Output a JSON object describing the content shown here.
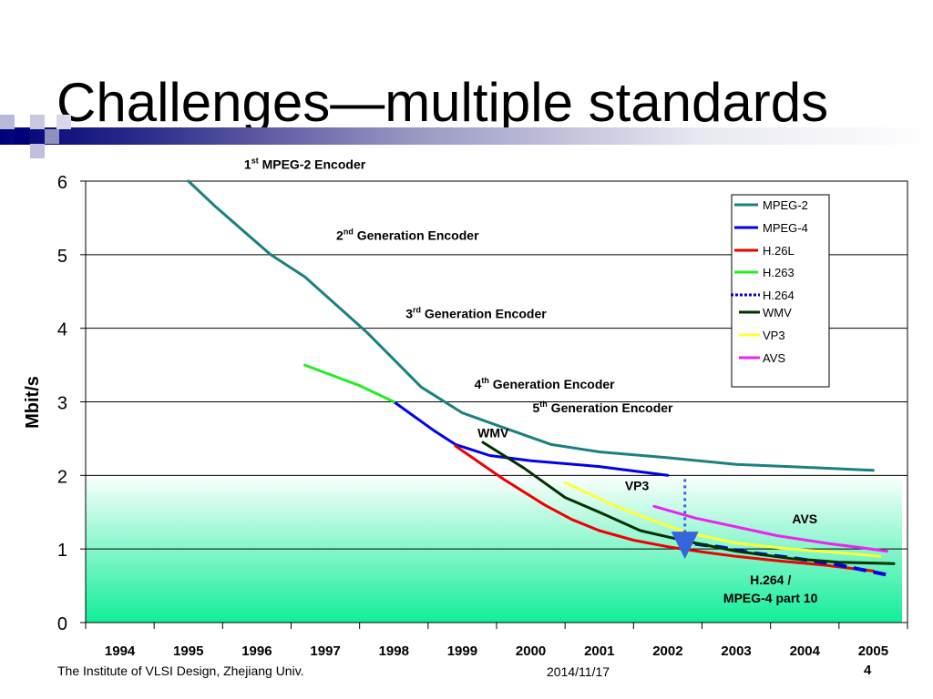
{
  "slide": {
    "title": "Challenges—multiple standards",
    "footer_left": "The Institute of VLSI Design, Zhejiang Univ.",
    "footer_date": "2014/11/17",
    "page_number": "4"
  },
  "chart_data": {
    "type": "line",
    "title": "",
    "xlabel": "",
    "ylabel": "Mbit/s",
    "xlim": [
      1993.5,
      2005.5
    ],
    "ylim": [
      0,
      6
    ],
    "x_ticks": [
      "1994",
      "1995",
      "1996",
      "1997",
      "1998",
      "1999",
      "2000",
      "2001",
      "2002",
      "2003",
      "2004",
      "2005"
    ],
    "y_ticks": [
      "0",
      "1",
      "2",
      "3",
      "4",
      "5",
      "6"
    ],
    "grid": "horizontal",
    "legend_position": "top-right",
    "series": [
      {
        "name": "MPEG-2",
        "color": "#1a8080",
        "style": "solid",
        "points": [
          [
            1995,
            6.0
          ],
          [
            1995.4,
            5.65
          ],
          [
            1996.2,
            5.0
          ],
          [
            1996.7,
            4.7
          ],
          [
            1997.6,
            3.95
          ],
          [
            1998.4,
            3.2
          ],
          [
            1999,
            2.85
          ],
          [
            1999.6,
            2.65
          ],
          [
            2000.3,
            2.42
          ],
          [
            2001,
            2.32
          ],
          [
            2002,
            2.24
          ],
          [
            2003,
            2.15
          ],
          [
            2004,
            2.11
          ],
          [
            2005,
            2.07
          ]
        ]
      },
      {
        "name": "MPEG-4",
        "color": "#0000ee",
        "style": "solid",
        "points": [
          [
            1998,
            3.0
          ],
          [
            1998.6,
            2.6
          ],
          [
            1998.9,
            2.42
          ],
          [
            1999.4,
            2.27
          ],
          [
            2000,
            2.2
          ],
          [
            2001,
            2.12
          ],
          [
            2002,
            2.0
          ]
        ]
      },
      {
        "name": "H.26L",
        "color": "#ee0000",
        "style": "solid",
        "points": [
          [
            1998.9,
            2.4
          ],
          [
            1999.6,
            1.95
          ],
          [
            2000.2,
            1.6
          ],
          [
            2000.6,
            1.4
          ],
          [
            2001,
            1.25
          ],
          [
            2001.5,
            1.12
          ],
          [
            2002,
            1.03
          ],
          [
            2002.5,
            0.96
          ],
          [
            2003,
            0.9
          ],
          [
            2003.6,
            0.84
          ],
          [
            2004.3,
            0.78
          ],
          [
            2005,
            0.7
          ]
        ]
      },
      {
        "name": "H.263",
        "color": "#22ee22",
        "style": "solid",
        "points": [
          [
            1996.7,
            3.5
          ],
          [
            1997.5,
            3.22
          ],
          [
            1998,
            3.0
          ]
        ]
      },
      {
        "name": "H.264",
        "color": "#0000dd",
        "style": "dashed",
        "points": [
          [
            2002.4,
            1.07
          ],
          [
            2002.8,
            1.02
          ],
          [
            2003.2,
            0.95
          ],
          [
            2003.8,
            0.88
          ],
          [
            2004.4,
            0.8
          ],
          [
            2005.2,
            0.65
          ]
        ]
      },
      {
        "name": "WMV",
        "color": "#003300",
        "style": "solid",
        "points": [
          [
            1999.3,
            2.45
          ],
          [
            1999.9,
            2.1
          ],
          [
            2000.5,
            1.7
          ],
          [
            2001,
            1.5
          ],
          [
            2001.6,
            1.25
          ],
          [
            2002.3,
            1.1
          ],
          [
            2003,
            0.97
          ],
          [
            2003.8,
            0.87
          ],
          [
            2004.5,
            0.82
          ],
          [
            2005.3,
            0.8
          ]
        ]
      },
      {
        "name": "VP3",
        "color": "#ffff33",
        "style": "solid",
        "points": [
          [
            2000.5,
            1.9
          ],
          [
            2001.2,
            1.6
          ],
          [
            2001.8,
            1.38
          ],
          [
            2002.3,
            1.22
          ],
          [
            2003,
            1.08
          ],
          [
            2003.8,
            1.0
          ],
          [
            2004.5,
            0.95
          ],
          [
            2005.1,
            0.9
          ]
        ]
      },
      {
        "name": "AVS",
        "color": "#ee22ee",
        "style": "solid",
        "points": [
          [
            2001.8,
            1.58
          ],
          [
            2002.4,
            1.42
          ],
          [
            2003,
            1.3
          ],
          [
            2003.6,
            1.18
          ],
          [
            2004.3,
            1.08
          ],
          [
            2004.8,
            1.02
          ],
          [
            2005.2,
            0.97
          ]
        ]
      }
    ],
    "annotations": [
      {
        "base": "1",
        "sup": "st",
        "rest": "MPEG-2 Encoder",
        "x": 1996.7,
        "y": 6.17
      },
      {
        "base": "2",
        "sup": "nd",
        "rest": "Generation Encoder",
        "x": 1998.2,
        "y": 5.2
      },
      {
        "base": "3",
        "sup": "rd",
        "rest": "Generation Encoder",
        "x": 1999.2,
        "y": 4.14
      },
      {
        "base": "4",
        "sup": "th",
        "rest": "Generation Encoder",
        "x": 2000.2,
        "y": 3.18
      },
      {
        "base": "5",
        "sup": "th",
        "rest": "Generation Encoder",
        "x": 2001.05,
        "y": 2.86
      },
      {
        "base": "WMV",
        "sup": "",
        "rest": "",
        "x": 1999.45,
        "y": 2.52
      },
      {
        "base": "VP3",
        "sup": "",
        "rest": "",
        "x": 2001.55,
        "y": 1.8
      },
      {
        "base": "AVS",
        "sup": "",
        "rest": "",
        "x": 2004,
        "y": 1.35
      },
      {
        "base": "H.264 /",
        "sup": "",
        "rest": "",
        "x": 2003.5,
        "y": 0.52
      },
      {
        "base": "MPEG-4 part 10",
        "sup": "",
        "rest": "",
        "x": 2003.5,
        "y": 0.27
      }
    ],
    "marker": {
      "x": 2002.25,
      "y_from": 1.95,
      "y_to": 1.05,
      "color": "#3366dd"
    },
    "colors": {
      "background_gradient_top": "#ffffff",
      "background_gradient_bottom": "#11ee99",
      "gridline": "#000000"
    }
  }
}
